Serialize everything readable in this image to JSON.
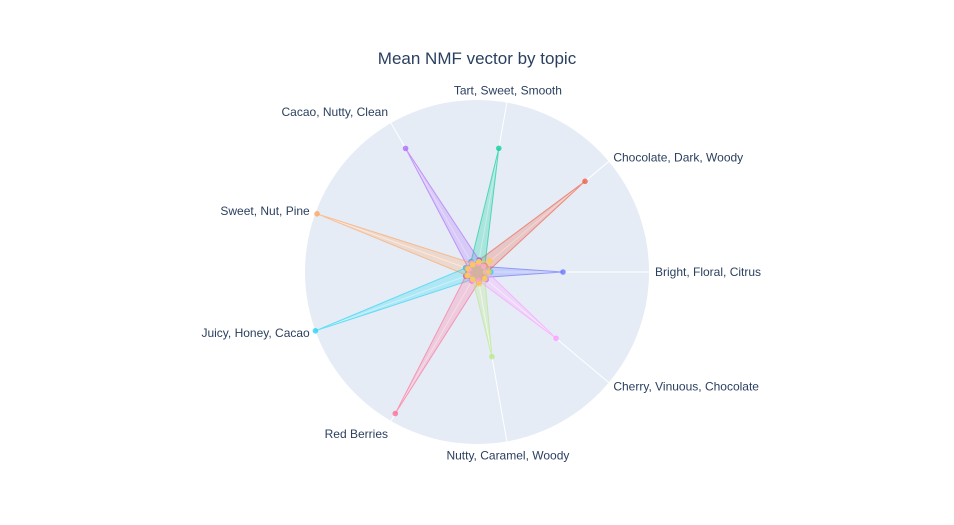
{
  "chart_data": {
    "type": "radar",
    "title": "Mean NMF vector by topic",
    "axes": [
      "Bright, Floral, Citrus",
      "Chocolate, Dark, Woody",
      "Tart, Sweet, Smooth",
      "Cacao, Nutty, Clean",
      "Sweet, Nut, Pine",
      "Juicy, Honey, Cacao",
      "Red Berries",
      "Nutty, Caramel, Woody",
      "Cherry, Vinuous, Chocolate"
    ],
    "r_range": [
      0,
      1
    ],
    "grid": true,
    "legend": "none",
    "series": [
      {
        "color": "#636efa",
        "values": [
          0.5,
          0.05,
          0.06,
          0.05,
          0.07,
          0.07,
          0.06,
          0.05,
          0.05
        ]
      },
      {
        "color": "#ef553b",
        "values": [
          0.06,
          0.82,
          0.07,
          0.05,
          0.06,
          0.05,
          0.06,
          0.05,
          0.06
        ]
      },
      {
        "color": "#00cc96",
        "values": [
          0.05,
          0.06,
          0.73,
          0.07,
          0.06,
          0.05,
          0.05,
          0.06,
          0.05
        ]
      },
      {
        "color": "#ab63fa",
        "values": [
          0.06,
          0.05,
          0.07,
          0.83,
          0.05,
          0.06,
          0.05,
          0.06,
          0.07
        ]
      },
      {
        "color": "#ffa15a",
        "values": [
          0.05,
          0.06,
          0.05,
          0.06,
          0.99,
          0.06,
          0.05,
          0.06,
          0.05
        ]
      },
      {
        "color": "#19d3f3",
        "values": [
          0.08,
          0.05,
          0.06,
          0.05,
          0.07,
          1.0,
          0.05,
          0.06,
          0.05
        ]
      },
      {
        "color": "#ff6692",
        "values": [
          0.05,
          0.06,
          0.05,
          0.05,
          0.06,
          0.07,
          0.95,
          0.06,
          0.05
        ]
      },
      {
        "color": "#b6e880",
        "values": [
          0.05,
          0.05,
          0.06,
          0.05,
          0.05,
          0.06,
          0.05,
          0.5,
          0.06
        ]
      },
      {
        "color": "#ff97ff",
        "values": [
          0.06,
          0.05,
          0.05,
          0.06,
          0.05,
          0.05,
          0.06,
          0.05,
          0.6
        ]
      },
      {
        "color": "#fecb52",
        "values": [
          0.07,
          0.1,
          0.06,
          0.05,
          0.06,
          0.06,
          0.05,
          0.07,
          0.06
        ]
      }
    ]
  }
}
